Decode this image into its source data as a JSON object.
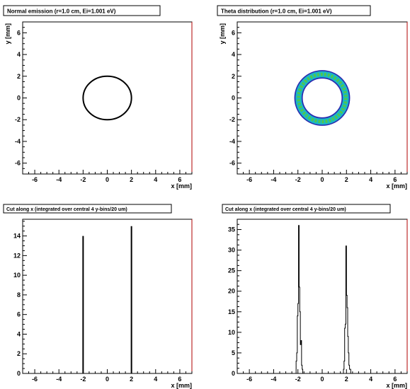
{
  "chart_data": [
    {
      "type": "scatter",
      "title": "Normal emission (r=1.0 cm, Ei=1.001 eV)",
      "xlabel": "x [mm]",
      "ylabel": "y [mm]",
      "xlim": [
        -7,
        7
      ],
      "ylim": [
        -7,
        7
      ],
      "xticks": [
        "-6",
        "-4",
        "-2",
        "0",
        "2",
        "4",
        "6"
      ],
      "yticks": [
        "-6",
        "-4",
        "-2",
        "0",
        "2",
        "4",
        "6"
      ],
      "grid": false,
      "ring": {
        "center": [
          0,
          0
        ],
        "radius": 2.0,
        "style": "thin-black"
      }
    },
    {
      "type": "heatmap",
      "title": "Theta distribution (r=1.0 cm, Ei=1.001 eV)",
      "xlabel": "x [mm]",
      "ylabel": "y [mm]",
      "xlim": [
        -7,
        7
      ],
      "ylim": [
        -7,
        7
      ],
      "xticks": [
        "-6",
        "-4",
        "-2",
        "0",
        "2",
        "4",
        "6"
      ],
      "yticks": [
        "-6",
        "-4",
        "-2",
        "0",
        "2",
        "4",
        "6"
      ],
      "grid": false,
      "ring": {
        "center": [
          0,
          0
        ],
        "radius_inner": 1.6,
        "radius_outer": 2.3
      },
      "colors": {
        "edge": "#2a2ab0",
        "mid": "#19b6c8",
        "core": "#4ec84e"
      }
    },
    {
      "type": "bar",
      "title": "Cut along x (integrated over central 4 y-bins/20 um)",
      "xlabel": "x [mm]",
      "ylabel": "",
      "xlim": [
        -7,
        7
      ],
      "ylim": [
        0,
        15.7
      ],
      "xticks": [
        "-6",
        "-4",
        "-2",
        "0",
        "2",
        "4",
        "6"
      ],
      "yticks": [
        "0",
        "2",
        "4",
        "6",
        "8",
        "10",
        "12",
        "14"
      ],
      "grid": false,
      "x": [
        -2.0,
        2.0
      ],
      "values": [
        14,
        15
      ]
    },
    {
      "type": "line",
      "title": "Cut along x (integrated over central 4 y-bins/20 um)",
      "xlabel": "x [mm]",
      "ylabel": "",
      "xlim": [
        -7,
        7
      ],
      "ylim": [
        0,
        37.5
      ],
      "xticks": [
        "-6",
        "-4",
        "-2",
        "0",
        "2",
        "4",
        "6"
      ],
      "yticks": [
        "0",
        "5",
        "10",
        "15",
        "20",
        "25",
        "30",
        "35"
      ],
      "grid": false,
      "x": [
        -2.35,
        -2.25,
        -2.15,
        -2.1,
        -2.05,
        -2.0,
        -1.95,
        -1.9,
        -1.85,
        -1.8,
        -1.75,
        -1.7,
        -1.65,
        -1.6,
        -1.5,
        1.65,
        1.75,
        1.8,
        1.85,
        1.9,
        1.95,
        2.0,
        2.05,
        2.1,
        2.15,
        2.2,
        2.25,
        2.35
      ],
      "values": [
        0,
        0,
        3,
        5,
        14,
        17,
        36,
        21,
        15,
        7,
        8,
        2,
        1,
        0,
        0,
        0,
        1,
        3,
        11,
        12,
        31,
        19,
        16,
        9,
        5,
        2,
        1,
        0
      ]
    }
  ]
}
